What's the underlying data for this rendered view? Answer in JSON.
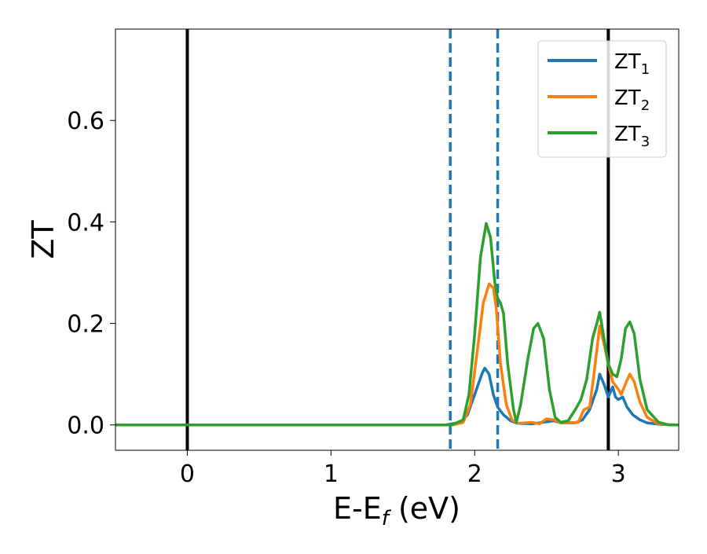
{
  "chart_data": {
    "type": "line",
    "title": "",
    "xlabel": "E-E",
    "xlabel_sub": "f",
    "xlabel_unit": " (eV)",
    "ylabel": "ZT",
    "xlim": [
      -0.5,
      3.42
    ],
    "ylim": [
      -0.05,
      0.78
    ],
    "x_ticks": [
      0,
      1,
      2,
      3
    ],
    "x_tick_labels": [
      "0",
      "1",
      "2",
      "3"
    ],
    "y_ticks": [
      0.0,
      0.2,
      0.4,
      0.6
    ],
    "y_tick_labels": [
      "0.0",
      "0.2",
      "0.4",
      "0.6"
    ],
    "grid": false,
    "legend_position": "top-right",
    "vlines": [
      {
        "x": 0.0,
        "style": "solid",
        "color": "#000000"
      },
      {
        "x": 2.93,
        "style": "solid",
        "color": "#000000"
      },
      {
        "x": 1.83,
        "style": "dashed",
        "color": "#1f77b4"
      },
      {
        "x": 2.16,
        "style": "dashed",
        "color": "#1f77b4"
      }
    ],
    "series": [
      {
        "name": "ZT",
        "name_sub": "1",
        "color": "#1f77b4",
        "points": [
          [
            -0.5,
            0
          ],
          [
            1.8,
            0
          ],
          [
            1.9,
            0.005
          ],
          [
            1.95,
            0.02
          ],
          [
            2.0,
            0.06
          ],
          [
            2.05,
            0.1
          ],
          [
            2.07,
            0.112
          ],
          [
            2.1,
            0.1
          ],
          [
            2.13,
            0.06
          ],
          [
            2.16,
            0.035
          ],
          [
            2.2,
            0.02
          ],
          [
            2.25,
            0.008
          ],
          [
            2.3,
            0.003
          ],
          [
            2.4,
            0.002
          ],
          [
            2.5,
            0.006
          ],
          [
            2.55,
            0.008
          ],
          [
            2.6,
            0.004
          ],
          [
            2.7,
            0.004
          ],
          [
            2.75,
            0.01
          ],
          [
            2.8,
            0.03
          ],
          [
            2.85,
            0.07
          ],
          [
            2.87,
            0.1
          ],
          [
            2.9,
            0.08
          ],
          [
            2.93,
            0.055
          ],
          [
            2.96,
            0.075
          ],
          [
            2.98,
            0.055
          ],
          [
            3.0,
            0.05
          ],
          [
            3.03,
            0.055
          ],
          [
            3.06,
            0.035
          ],
          [
            3.1,
            0.02
          ],
          [
            3.15,
            0.01
          ],
          [
            3.2,
            0.004
          ],
          [
            3.3,
            0.001
          ],
          [
            3.42,
            0
          ]
        ]
      },
      {
        "name": "ZT",
        "name_sub": "2",
        "color": "#ff7f0e",
        "points": [
          [
            -0.5,
            0
          ],
          [
            1.85,
            0
          ],
          [
            1.92,
            0.005
          ],
          [
            1.97,
            0.04
          ],
          [
            2.02,
            0.15
          ],
          [
            2.06,
            0.24
          ],
          [
            2.1,
            0.278
          ],
          [
            2.13,
            0.27
          ],
          [
            2.15,
            0.23
          ],
          [
            2.18,
            0.12
          ],
          [
            2.22,
            0.04
          ],
          [
            2.26,
            0.01
          ],
          [
            2.3,
            0.003
          ],
          [
            2.4,
            0.005
          ],
          [
            2.45,
            0.002
          ],
          [
            2.5,
            0.012
          ],
          [
            2.55,
            0.01
          ],
          [
            2.6,
            0.004
          ],
          [
            2.72,
            0.005
          ],
          [
            2.76,
            0.03
          ],
          [
            2.8,
            0.035
          ],
          [
            2.83,
            0.1
          ],
          [
            2.87,
            0.195
          ],
          [
            2.9,
            0.16
          ],
          [
            2.93,
            0.12
          ],
          [
            2.96,
            0.085
          ],
          [
            3.0,
            0.07
          ],
          [
            3.02,
            0.06
          ],
          [
            3.06,
            0.088
          ],
          [
            3.08,
            0.1
          ],
          [
            3.11,
            0.085
          ],
          [
            3.15,
            0.045
          ],
          [
            3.2,
            0.015
          ],
          [
            3.27,
            0.003
          ],
          [
            3.35,
            0
          ],
          [
            3.42,
            0
          ]
        ]
      },
      {
        "name": "ZT",
        "name_sub": "3",
        "color": "#2ca02c",
        "points": [
          [
            -0.5,
            0
          ],
          [
            1.84,
            0
          ],
          [
            1.92,
            0.01
          ],
          [
            1.96,
            0.06
          ],
          [
            2.0,
            0.18
          ],
          [
            2.04,
            0.33
          ],
          [
            2.08,
            0.397
          ],
          [
            2.11,
            0.37
          ],
          [
            2.14,
            0.28
          ],
          [
            2.16,
            0.25
          ],
          [
            2.18,
            0.24
          ],
          [
            2.2,
            0.22
          ],
          [
            2.23,
            0.12
          ],
          [
            2.27,
            0.03
          ],
          [
            2.29,
            0.005
          ],
          [
            2.32,
            0.04
          ],
          [
            2.37,
            0.13
          ],
          [
            2.41,
            0.19
          ],
          [
            2.44,
            0.2
          ],
          [
            2.48,
            0.17
          ],
          [
            2.52,
            0.07
          ],
          [
            2.56,
            0.015
          ],
          [
            2.6,
            0.005
          ],
          [
            2.65,
            0.008
          ],
          [
            2.7,
            0.03
          ],
          [
            2.74,
            0.05
          ],
          [
            2.78,
            0.09
          ],
          [
            2.82,
            0.17
          ],
          [
            2.85,
            0.2
          ],
          [
            2.87,
            0.222
          ],
          [
            2.9,
            0.17
          ],
          [
            2.93,
            0.12
          ],
          [
            2.96,
            0.1
          ],
          [
            2.99,
            0.095
          ],
          [
            3.02,
            0.13
          ],
          [
            3.05,
            0.19
          ],
          [
            3.08,
            0.203
          ],
          [
            3.11,
            0.18
          ],
          [
            3.15,
            0.09
          ],
          [
            3.2,
            0.03
          ],
          [
            3.28,
            0.005
          ],
          [
            3.35,
            0
          ],
          [
            3.42,
            0
          ]
        ]
      }
    ]
  }
}
